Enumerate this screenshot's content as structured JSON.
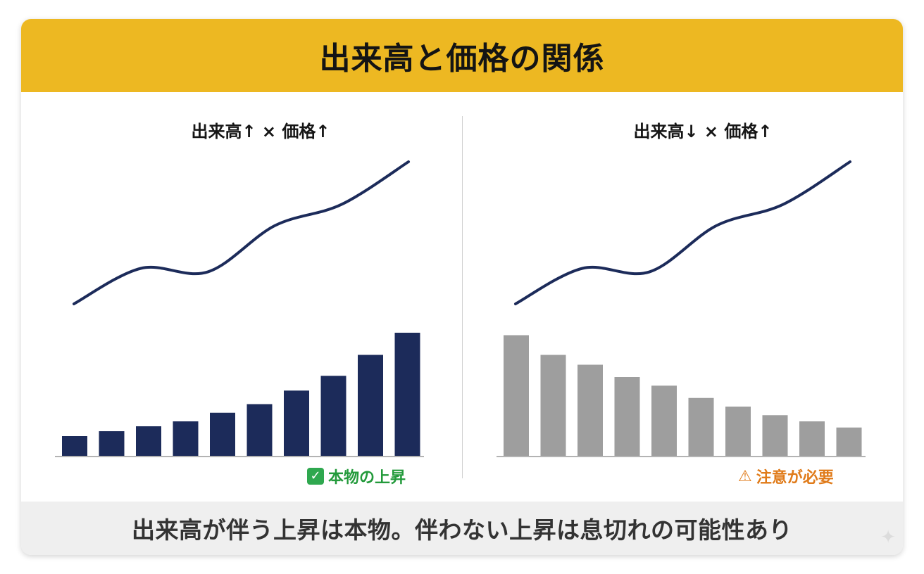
{
  "title": "出来高と価格の関係",
  "footer_text": "出来高が伴う上昇は本物。伴わない上昇は息切れの可能性あり",
  "colors": {
    "header_bg": "#EDB822",
    "line": "#1C2B5A",
    "bars_left": "#1C2B5A",
    "bars_right": "#9E9E9E",
    "good": "#239A3B",
    "warn": "#E07B1A"
  },
  "chart_data": [
    {
      "type": "line+bar",
      "title": "出来高↑ × 価格↑",
      "price": [
        20,
        30,
        29,
        42,
        48,
        60
      ],
      "volume": [
        16,
        20,
        24,
        28,
        35,
        42,
        53,
        65,
        82,
        100
      ],
      "status_icon": "check-icon",
      "status_label": "本物の上昇"
    },
    {
      "type": "line+bar",
      "title": "出来高↓ × 価格↑",
      "price": [
        20,
        30,
        29,
        42,
        48,
        60
      ],
      "volume": [
        98,
        82,
        74,
        64,
        57,
        47,
        40,
        33,
        28,
        23
      ],
      "status_icon": "warning-icon",
      "status_label": "注意が必要"
    }
  ]
}
